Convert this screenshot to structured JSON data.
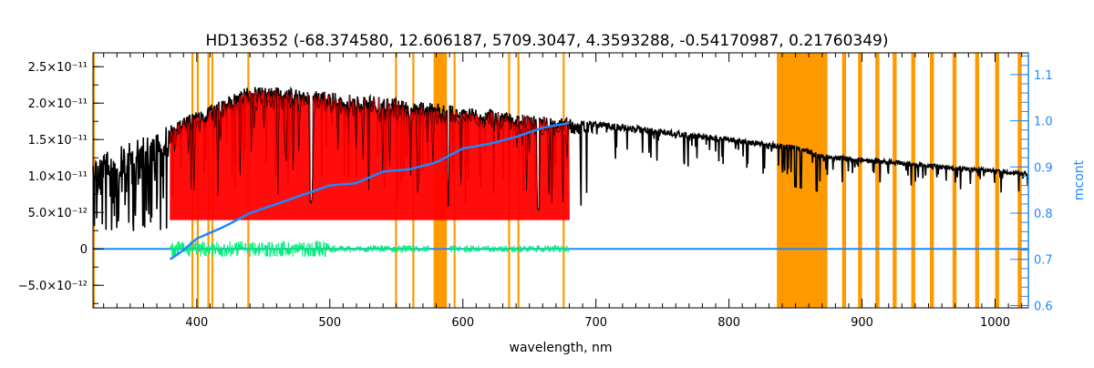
{
  "chart_data": {
    "type": "line",
    "title": "HD136352   (-68.374580, 12.606187, 5709.3047, 4.3593288, -0.54170987, 0.21760349)",
    "xlabel": "wavelength, nm",
    "ylabel_right": "mcont",
    "xlim": [
      322,
      1025
    ],
    "ylim": [
      -8.1e-12,
      2.69e-11
    ],
    "ylim_right": [
      0.595,
      1.147
    ],
    "xticks": [
      400,
      500,
      600,
      700,
      800,
      900,
      1000
    ],
    "xtick_labels": [
      "400",
      "500",
      "600",
      "700",
      "800",
      "900",
      "1000"
    ],
    "yticks": [
      -5e-12,
      0,
      5e-12,
      1e-11,
      1.5e-11,
      2e-11,
      2.5e-11
    ],
    "ytick_labels": [
      "−5.0×10⁻¹²",
      "0",
      "5.0×10⁻¹²",
      "1.0×10⁻¹¹",
      "1.5×10⁻¹¹",
      "2.0×10⁻¹¹",
      "2.5×10⁻¹¹"
    ],
    "yticks_right": [
      0.6,
      0.7,
      0.8,
      0.9,
      1.0,
      1.1
    ],
    "ytick_labels_right": [
      "0.6",
      "0.7",
      "0.8",
      "0.9",
      "1.0",
      "1.1"
    ],
    "colors": {
      "observed": "#000000",
      "model": "#ff0000",
      "residual": "#00ee77",
      "mcont": "#1e88ff",
      "mask": "#ff9900",
      "highlight": "#ffee00"
    },
    "observed_continuum": {
      "x": [
        322,
        380,
        440,
        500,
        560,
        600,
        700,
        850,
        870,
        1025
      ],
      "y": [
        1.25e-11,
        1.7e-11,
        2.25e-11,
        2.15e-11,
        2.05e-11,
        1.95e-11,
        1.75e-11,
        1.42e-11,
        1.3e-11,
        1.05e-11
      ]
    },
    "model_range": [
      380,
      680
    ],
    "residual_range": [
      380,
      680
    ],
    "residual_gap": [
      575,
      590
    ],
    "zero_line": 0,
    "mcont": {
      "x": [
        380,
        390,
        400,
        420,
        440,
        460,
        480,
        500,
        520,
        540,
        560,
        580,
        600,
        620,
        640,
        660,
        680
      ],
      "y": [
        0.7,
        0.72,
        0.745,
        0.77,
        0.8,
        0.82,
        0.84,
        0.86,
        0.865,
        0.89,
        0.895,
        0.91,
        0.94,
        0.95,
        0.965,
        0.985,
        0.995
      ]
    },
    "masked_bands": [
      [
        322,
        323
      ],
      [
        396,
        397.5
      ],
      [
        400,
        401.5
      ],
      [
        408,
        409.5
      ],
      [
        411,
        412.5
      ],
      [
        438,
        439.5
      ],
      [
        549,
        550.5
      ],
      [
        562,
        563.5
      ],
      [
        578,
        588
      ],
      [
        593,
        594.5
      ],
      [
        634,
        635.5
      ],
      [
        641,
        642.5
      ],
      [
        675,
        676.5
      ],
      [
        836,
        874
      ],
      [
        885,
        888
      ],
      [
        897,
        900
      ],
      [
        910,
        913
      ],
      [
        923,
        926
      ],
      [
        937,
        940
      ],
      [
        951,
        954
      ],
      [
        968,
        971
      ],
      [
        985,
        988
      ],
      [
        1000,
        1003
      ],
      [
        1017,
        1020
      ]
    ]
  }
}
